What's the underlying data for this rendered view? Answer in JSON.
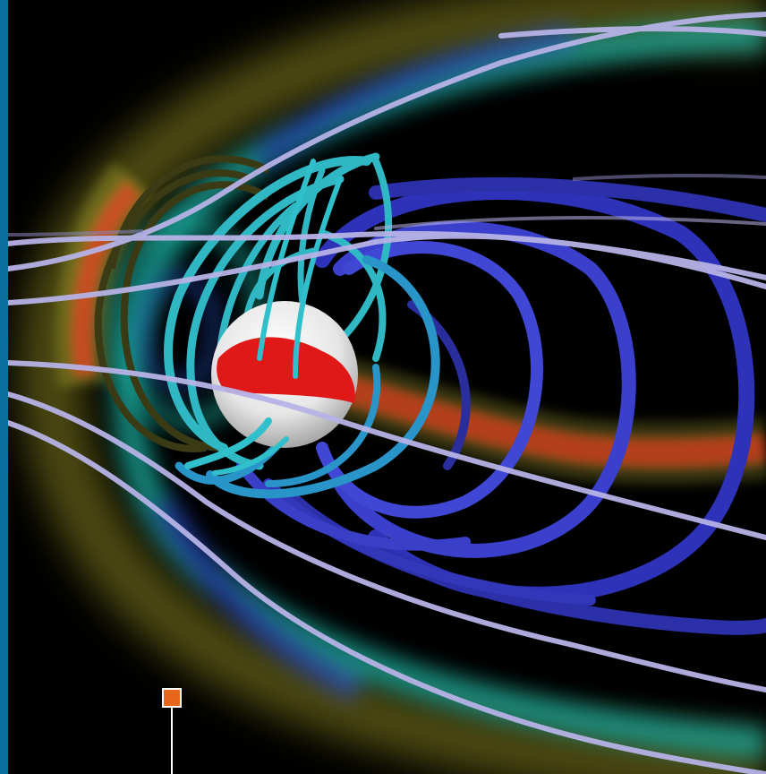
{
  "image": {
    "subject": "magnetosphere-field-line-visualization",
    "colors": {
      "background": "#000000",
      "left_band": "#0a6e9e",
      "field_line_lavender": "#b9b6e8",
      "field_line_blue": "#3b3fc4",
      "field_line_cyan": "#2fb8c4",
      "field_line_olive": "#4a4a18",
      "glow_yellow": "#c8c23a",
      "glow_red": "#e01818",
      "glow_cyan": "#20c4b4",
      "glow_blue": "#2a5ad8",
      "planet": "#f2f2f2",
      "planet_band": "#e01818",
      "marker_fill": "#e8651c",
      "marker_border": "#ffffff"
    },
    "marker": {
      "icon": "square-marker-icon"
    }
  }
}
